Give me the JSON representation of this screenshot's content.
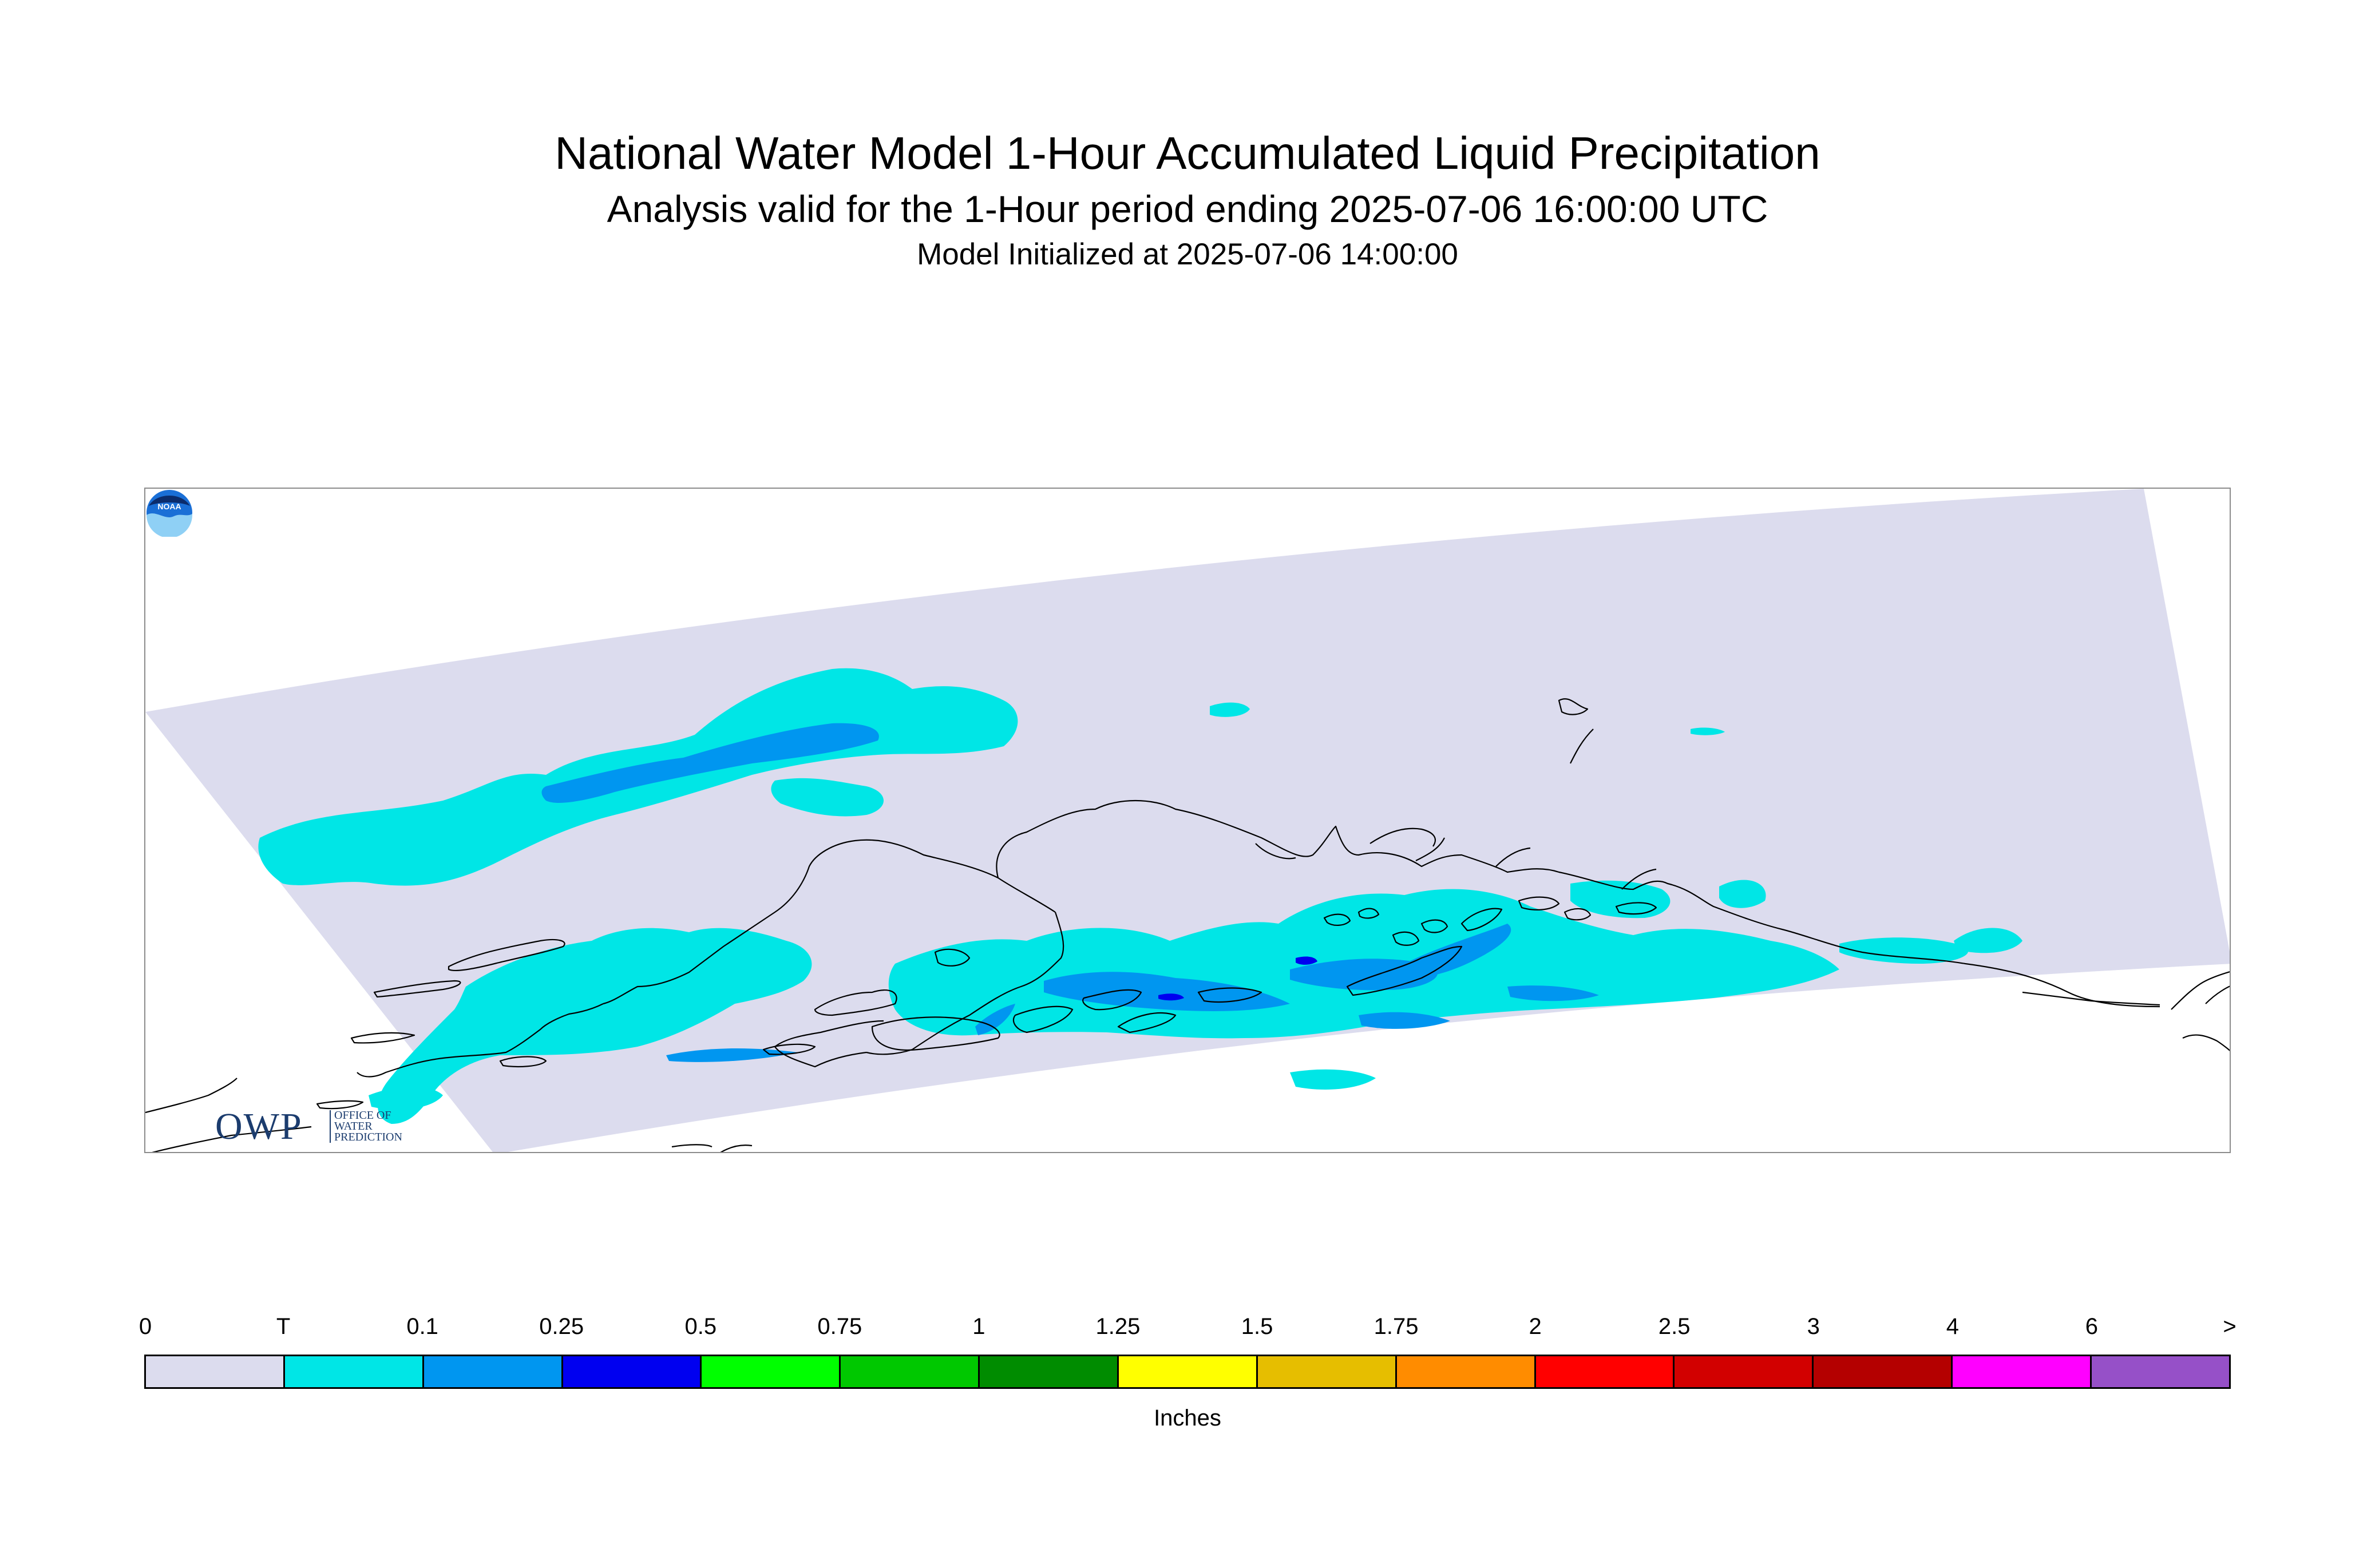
{
  "header": {
    "title": "National Water Model 1-Hour Accumulated Liquid Precipitation",
    "subtitle": "Analysis valid for the 1-Hour period ending 2025-07-06 16:00:00 UTC",
    "init_line": "Model Initialized at 2025-07-06 14:00:00"
  },
  "map": {
    "region": "Alaska",
    "domain_fill_color": "#dcdcee",
    "coastline_color": "#000000",
    "precip_colors_present": [
      "#00e6e6",
      "#0096f0",
      "#0000f0"
    ]
  },
  "logos": {
    "owp": {
      "mark": "OWP",
      "line1": "OFFICE OF",
      "line2": "WATER",
      "line3": "PREDICTION"
    },
    "noaa": {
      "text": "NOAA"
    }
  },
  "legend": {
    "units": "Inches",
    "ticks": [
      "0",
      "T",
      "0.1",
      "0.25",
      "0.5",
      "0.75",
      "1",
      "1.25",
      "1.5",
      "1.75",
      "2",
      "2.5",
      "3",
      "4",
      "6",
      ">"
    ],
    "colors": [
      "#dcdcee",
      "#00e6e6",
      "#0096f0",
      "#0000f0",
      "#00ff00",
      "#00c800",
      "#008c00",
      "#ffff00",
      "#e6be00",
      "#ff8c00",
      "#ff0000",
      "#d20000",
      "#b40000",
      "#ff00ff",
      "#9650c8"
    ]
  }
}
